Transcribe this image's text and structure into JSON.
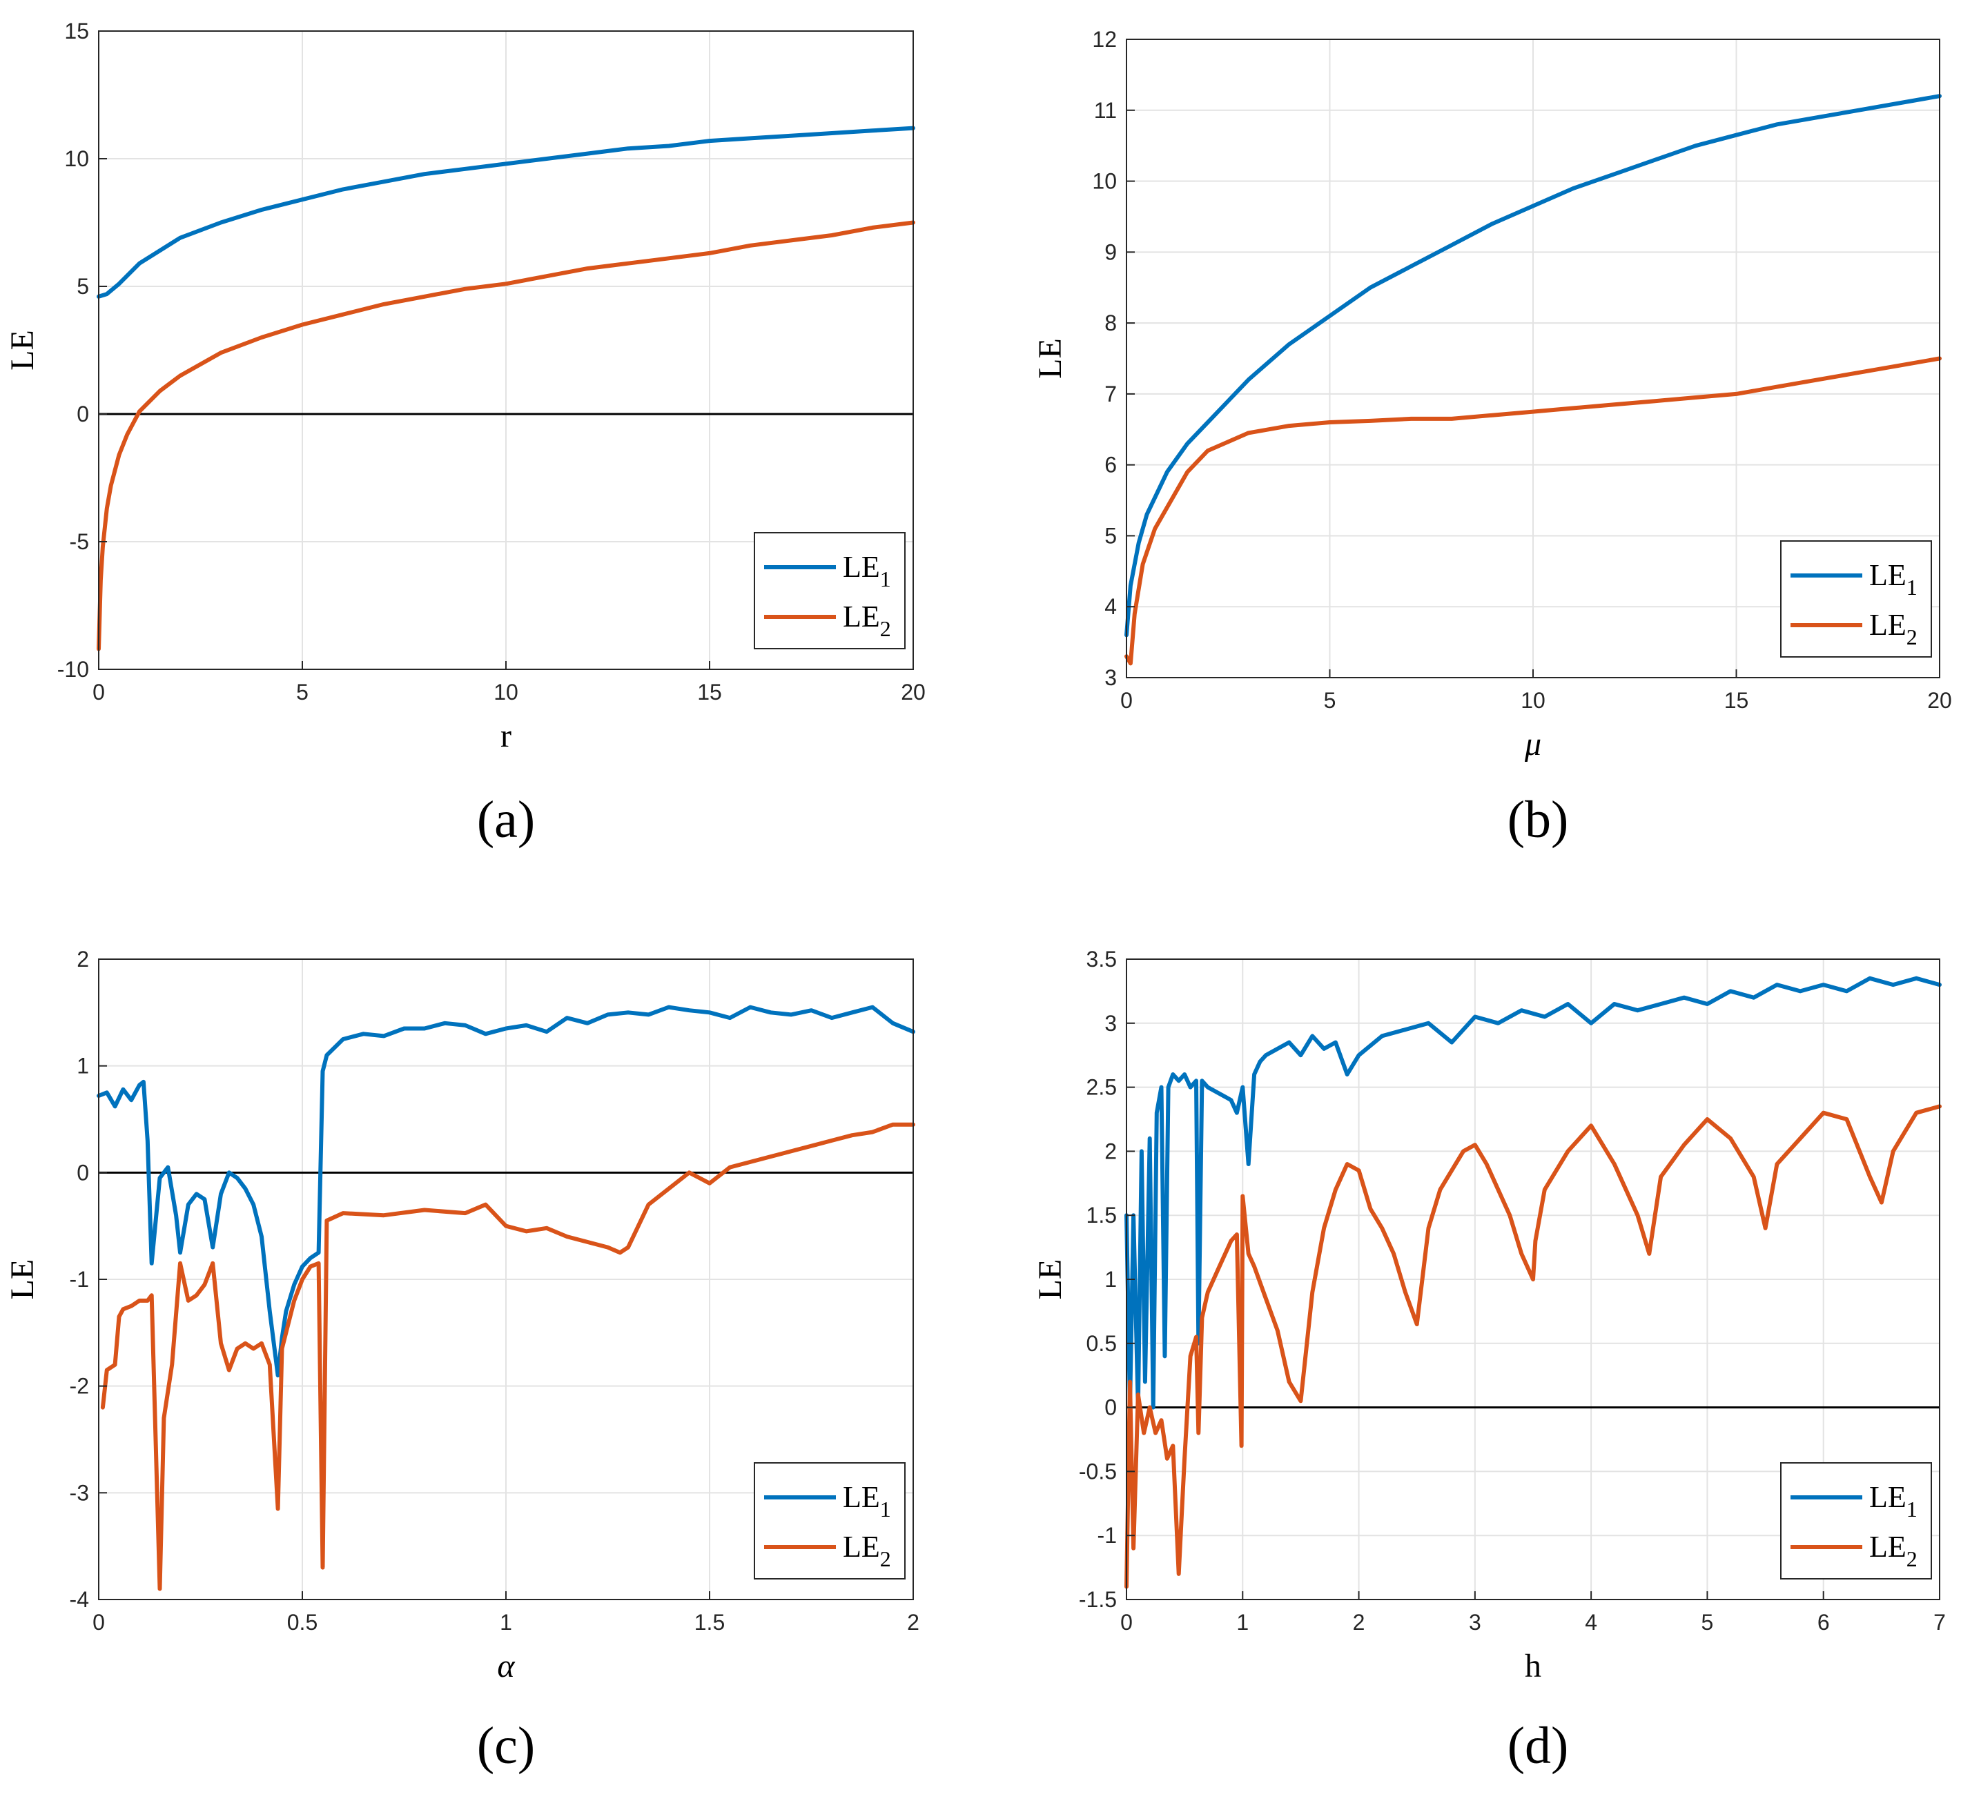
{
  "chart_data": [
    {
      "type": "line",
      "panel_label": "(a)",
      "xlabel": "r",
      "ylabel": "LE",
      "xlim": [
        0,
        20
      ],
      "ylim": [
        -10,
        15
      ],
      "xticks": [
        0,
        5,
        10,
        15,
        20
      ],
      "yticks": [
        -10,
        -5,
        0,
        5,
        10,
        15
      ],
      "xtick_labels": [
        "0",
        "5",
        "10",
        "15",
        "20"
      ],
      "ytick_labels": [
        "-10",
        "-5",
        "0",
        "5",
        "10",
        "15"
      ],
      "grid": true,
      "zero_line": true,
      "legend": {
        "position": "bottom-right",
        "entries": [
          "LE_1",
          "LE_2"
        ]
      },
      "series": [
        {
          "name": "LE_1",
          "color": "#0072BD",
          "x": [
            0,
            0.2,
            0.5,
            1,
            1.5,
            2,
            3,
            4,
            5,
            6,
            7,
            8,
            9,
            10,
            11,
            12,
            13,
            14,
            15,
            16,
            17,
            18,
            19,
            20
          ],
          "y": [
            4.6,
            4.7,
            5.1,
            5.9,
            6.4,
            6.9,
            7.5,
            8.0,
            8.4,
            8.8,
            9.1,
            9.4,
            9.6,
            9.8,
            10.0,
            10.2,
            10.4,
            10.5,
            10.7,
            10.8,
            10.9,
            11.0,
            11.1,
            11.2
          ]
        },
        {
          "name": "LE_2",
          "color": "#D95319",
          "x": [
            0,
            0.05,
            0.1,
            0.2,
            0.3,
            0.5,
            0.7,
            1,
            1.5,
            2,
            3,
            4,
            5,
            6,
            7,
            8,
            9,
            10,
            11,
            12,
            13,
            14,
            15,
            16,
            17,
            18,
            19,
            20
          ],
          "y": [
            -9.2,
            -6.5,
            -5.2,
            -3.7,
            -2.8,
            -1.6,
            -0.8,
            0.1,
            0.9,
            1.5,
            2.4,
            3.0,
            3.5,
            3.9,
            4.3,
            4.6,
            4.9,
            5.1,
            5.4,
            5.7,
            5.9,
            6.1,
            6.3,
            6.6,
            6.8,
            7.0,
            7.3,
            7.5
          ]
        }
      ]
    },
    {
      "type": "line",
      "panel_label": "(b)",
      "xlabel": "μ",
      "ylabel": "LE",
      "xlim": [
        0,
        20
      ],
      "ylim": [
        3,
        12
      ],
      "xticks": [
        0,
        5,
        10,
        15,
        20
      ],
      "yticks": [
        3,
        4,
        5,
        6,
        7,
        8,
        9,
        10,
        11,
        12
      ],
      "xtick_labels": [
        "0",
        "5",
        "10",
        "15",
        "20"
      ],
      "ytick_labels": [
        "3",
        "4",
        "5",
        "6",
        "7",
        "8",
        "9",
        "10",
        "11",
        "12"
      ],
      "grid": true,
      "zero_line": false,
      "legend": {
        "position": "bottom-right",
        "entries": [
          "LE_1",
          "LE_2"
        ]
      },
      "series": [
        {
          "name": "LE_1",
          "color": "#0072BD",
          "x": [
            0,
            0.1,
            0.3,
            0.5,
            1,
            1.5,
            2,
            3,
            4,
            5,
            6,
            7,
            8,
            9,
            10,
            11,
            12,
            13,
            14,
            15,
            16,
            17,
            18,
            19,
            20
          ],
          "y": [
            3.6,
            4.3,
            4.9,
            5.3,
            5.9,
            6.3,
            6.6,
            7.2,
            7.7,
            8.1,
            8.5,
            8.8,
            9.1,
            9.4,
            9.65,
            9.9,
            10.1,
            10.3,
            10.5,
            10.65,
            10.8,
            10.9,
            11.0,
            11.1,
            11.2
          ]
        },
        {
          "name": "LE_2",
          "color": "#D95319",
          "x": [
            0,
            0.1,
            0.2,
            0.4,
            0.7,
            1,
            1.5,
            2,
            3,
            4,
            5,
            6,
            7,
            8,
            9,
            10,
            11,
            12,
            13,
            14,
            15,
            16,
            17,
            18,
            19,
            20
          ],
          "y": [
            3.3,
            3.2,
            3.9,
            4.6,
            5.1,
            5.4,
            5.9,
            6.2,
            6.45,
            6.55,
            6.6,
            6.62,
            6.65,
            6.65,
            6.7,
            6.75,
            6.8,
            6.85,
            6.9,
            6.95,
            7.0,
            7.1,
            7.2,
            7.3,
            7.4,
            7.5
          ]
        }
      ]
    },
    {
      "type": "line",
      "panel_label": "(c)",
      "xlabel": "α",
      "ylabel": "LE",
      "xlim": [
        0,
        2
      ],
      "ylim": [
        -4,
        2
      ],
      "xticks": [
        0,
        0.5,
        1,
        1.5,
        2
      ],
      "yticks": [
        -4,
        -3,
        -2,
        -1,
        0,
        1,
        2
      ],
      "xtick_labels": [
        "0",
        "0.5",
        "1",
        "1.5",
        "2"
      ],
      "ytick_labels": [
        "-4",
        "-3",
        "-2",
        "-1",
        "0",
        "1",
        "2"
      ],
      "grid": true,
      "zero_line": true,
      "legend": {
        "position": "bottom-right",
        "entries": [
          "LE_1",
          "LE_2"
        ]
      },
      "series": [
        {
          "name": "LE_1",
          "color": "#0072BD",
          "x": [
            0,
            0.02,
            0.04,
            0.06,
            0.08,
            0.1,
            0.11,
            0.12,
            0.13,
            0.15,
            0.17,
            0.19,
            0.2,
            0.22,
            0.24,
            0.26,
            0.28,
            0.3,
            0.32,
            0.34,
            0.36,
            0.38,
            0.4,
            0.42,
            0.44,
            0.45,
            0.46,
            0.48,
            0.5,
            0.52,
            0.54,
            0.55,
            0.56,
            0.6,
            0.65,
            0.7,
            0.75,
            0.8,
            0.85,
            0.9,
            0.95,
            1.0,
            1.05,
            1.1,
            1.15,
            1.2,
            1.25,
            1.3,
            1.35,
            1.4,
            1.45,
            1.5,
            1.55,
            1.6,
            1.65,
            1.7,
            1.75,
            1.8,
            1.85,
            1.9,
            1.95,
            2.0
          ],
          "y": [
            0.72,
            0.75,
            0.62,
            0.78,
            0.68,
            0.82,
            0.85,
            0.3,
            -0.85,
            -0.05,
            0.05,
            -0.4,
            -0.75,
            -0.3,
            -0.2,
            -0.25,
            -0.7,
            -0.2,
            0.0,
            -0.05,
            -0.15,
            -0.3,
            -0.6,
            -1.3,
            -1.9,
            -1.55,
            -1.3,
            -1.05,
            -0.88,
            -0.8,
            -0.75,
            0.95,
            1.1,
            1.25,
            1.3,
            1.28,
            1.35,
            1.35,
            1.4,
            1.38,
            1.3,
            1.35,
            1.38,
            1.32,
            1.45,
            1.4,
            1.48,
            1.5,
            1.48,
            1.55,
            1.52,
            1.5,
            1.45,
            1.55,
            1.5,
            1.48,
            1.52,
            1.45,
            1.5,
            1.55,
            1.4,
            1.32
          ]
        },
        {
          "name": "LE_2",
          "color": "#D95319",
          "x": [
            0.01,
            0.02,
            0.04,
            0.05,
            0.06,
            0.08,
            0.1,
            0.12,
            0.13,
            0.15,
            0.16,
            0.18,
            0.2,
            0.22,
            0.24,
            0.26,
            0.28,
            0.3,
            0.32,
            0.34,
            0.36,
            0.38,
            0.4,
            0.42,
            0.44,
            0.45,
            0.46,
            0.48,
            0.5,
            0.52,
            0.54,
            0.55,
            0.56,
            0.6,
            0.7,
            0.8,
            0.9,
            0.95,
            1.0,
            1.05,
            1.1,
            1.15,
            1.2,
            1.25,
            1.28,
            1.3,
            1.35,
            1.4,
            1.45,
            1.5,
            1.55,
            1.6,
            1.65,
            1.7,
            1.75,
            1.8,
            1.85,
            1.9,
            1.95,
            2.0
          ],
          "y": [
            -2.2,
            -1.85,
            -1.8,
            -1.35,
            -1.28,
            -1.25,
            -1.2,
            -1.2,
            -1.15,
            -3.9,
            -2.3,
            -1.8,
            -0.85,
            -1.2,
            -1.15,
            -1.05,
            -0.85,
            -1.6,
            -1.85,
            -1.65,
            -1.6,
            -1.65,
            -1.6,
            -1.8,
            -3.15,
            -1.65,
            -1.5,
            -1.2,
            -1.0,
            -0.88,
            -0.85,
            -3.7,
            -0.45,
            -0.38,
            -0.4,
            -0.35,
            -0.38,
            -0.3,
            -0.5,
            -0.55,
            -0.52,
            -0.6,
            -0.65,
            -0.7,
            -0.75,
            -0.7,
            -0.3,
            -0.15,
            0.0,
            -0.1,
            0.05,
            0.1,
            0.15,
            0.2,
            0.25,
            0.3,
            0.35,
            0.38,
            0.45,
            0.45
          ]
        }
      ]
    },
    {
      "type": "line",
      "panel_label": "(d)",
      "xlabel": "h",
      "ylabel": "LE",
      "xlim": [
        0,
        7
      ],
      "ylim": [
        -1.5,
        3.5
      ],
      "xticks": [
        0,
        1,
        2,
        3,
        4,
        5,
        6,
        7
      ],
      "yticks": [
        -1.5,
        -1,
        -0.5,
        0,
        0.5,
        1,
        1.5,
        2,
        2.5,
        3,
        3.5
      ],
      "xtick_labels": [
        "0",
        "1",
        "2",
        "3",
        "4",
        "5",
        "6",
        "7"
      ],
      "ytick_labels": [
        "-1.5",
        "-1",
        "-0.5",
        "0",
        "0.5",
        "1",
        "1.5",
        "2",
        "2.5",
        "3",
        "3.5"
      ],
      "grid": true,
      "zero_line": true,
      "legend": {
        "position": "bottom-right",
        "entries": [
          "LE_1",
          "LE_2"
        ]
      },
      "series": [
        {
          "name": "LE_1",
          "color": "#0072BD",
          "x": [
            0,
            0.03,
            0.06,
            0.1,
            0.13,
            0.16,
            0.2,
            0.23,
            0.26,
            0.3,
            0.33,
            0.36,
            0.4,
            0.45,
            0.5,
            0.55,
            0.6,
            0.62,
            0.65,
            0.7,
            0.8,
            0.9,
            0.95,
            1.0,
            1.05,
            1.1,
            1.15,
            1.2,
            1.3,
            1.4,
            1.5,
            1.6,
            1.7,
            1.8,
            1.9,
            2.0,
            2.2,
            2.4,
            2.6,
            2.8,
            3.0,
            3.2,
            3.4,
            3.6,
            3.8,
            4.0,
            4.2,
            4.4,
            4.6,
            4.8,
            5.0,
            5.2,
            5.4,
            5.6,
            5.8,
            6.0,
            6.2,
            6.4,
            6.6,
            6.8,
            7.0
          ],
          "y": [
            1.5,
            0.0,
            1.5,
            0.0,
            2.0,
            0.2,
            2.1,
            0.0,
            2.3,
            2.5,
            0.4,
            2.5,
            2.6,
            2.55,
            2.6,
            2.5,
            2.55,
            0.5,
            2.55,
            2.5,
            2.45,
            2.4,
            2.3,
            2.5,
            1.9,
            2.6,
            2.7,
            2.75,
            2.8,
            2.85,
            2.75,
            2.9,
            2.8,
            2.85,
            2.6,
            2.75,
            2.9,
            2.95,
            3.0,
            2.85,
            3.05,
            3.0,
            3.1,
            3.05,
            3.15,
            3.0,
            3.15,
            3.1,
            3.15,
            3.2,
            3.15,
            3.25,
            3.2,
            3.3,
            3.25,
            3.3,
            3.25,
            3.35,
            3.3,
            3.35,
            3.3
          ]
        },
        {
          "name": "LE_2",
          "color": "#D95319",
          "x": [
            0,
            0.03,
            0.06,
            0.1,
            0.15,
            0.2,
            0.25,
            0.3,
            0.35,
            0.4,
            0.45,
            0.48,
            0.5,
            0.55,
            0.6,
            0.62,
            0.65,
            0.7,
            0.8,
            0.9,
            0.95,
            0.99,
            1.0,
            1.05,
            1.1,
            1.2,
            1.3,
            1.4,
            1.5,
            1.6,
            1.7,
            1.8,
            1.9,
            2.0,
            2.1,
            2.2,
            2.3,
            2.4,
            2.5,
            2.6,
            2.7,
            2.8,
            2.9,
            3.0,
            3.1,
            3.2,
            3.3,
            3.4,
            3.5,
            3.52,
            3.6,
            3.8,
            4.0,
            4.2,
            4.4,
            4.5,
            4.6,
            4.8,
            5.0,
            5.2,
            5.4,
            5.5,
            5.6,
            5.8,
            6.0,
            6.2,
            6.4,
            6.5,
            6.6,
            6.8,
            7.0
          ],
          "y": [
            -1.4,
            0.2,
            -1.1,
            0.1,
            -0.2,
            0.0,
            -0.2,
            -0.1,
            -0.4,
            -0.3,
            -1.3,
            -0.75,
            -0.4,
            0.4,
            0.55,
            -0.2,
            0.7,
            0.9,
            1.1,
            1.3,
            1.35,
            -0.3,
            1.65,
            1.2,
            1.1,
            0.85,
            0.6,
            0.2,
            0.05,
            0.9,
            1.4,
            1.7,
            1.9,
            1.85,
            1.55,
            1.4,
            1.2,
            0.9,
            0.65,
            1.4,
            1.7,
            1.85,
            2.0,
            2.05,
            1.9,
            1.7,
            1.5,
            1.2,
            1.0,
            1.3,
            1.7,
            2.0,
            2.2,
            1.9,
            1.5,
            1.2,
            1.8,
            2.05,
            2.25,
            2.1,
            1.8,
            1.4,
            1.9,
            2.1,
            2.3,
            2.25,
            1.8,
            1.6,
            2.0,
            2.3,
            2.35
          ]
        }
      ]
    }
  ]
}
